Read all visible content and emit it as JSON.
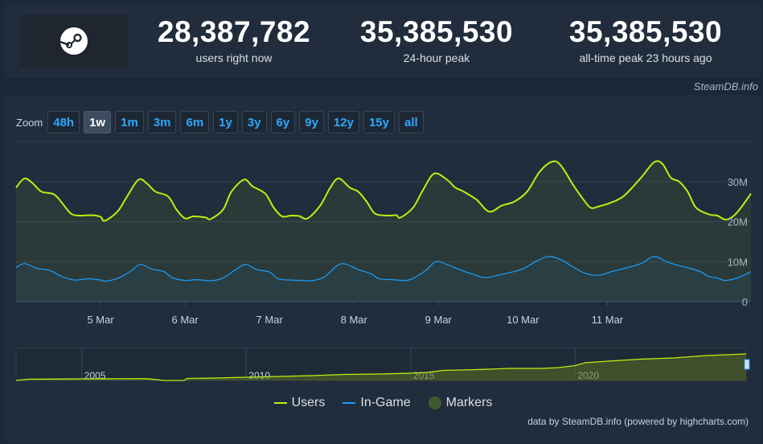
{
  "stats": [
    {
      "value": "28,387,782",
      "label": "users right now"
    },
    {
      "value": "35,385,530",
      "label": "24-hour peak"
    },
    {
      "value": "35,385,530",
      "label": "all-time peak 23 hours ago"
    }
  ],
  "logo_icon": "steam-logo-icon",
  "credit_top": "SteamDB.info",
  "zoom": {
    "label": "Zoom",
    "buttons": [
      "48h",
      "1w",
      "1m",
      "3m",
      "6m",
      "1y",
      "3y",
      "6y",
      "9y",
      "12y",
      "15y",
      "all"
    ],
    "active": "1w"
  },
  "chart_data": {
    "type": "line",
    "x_ticks": [
      "5 Mar",
      "6 Mar",
      "7 Mar",
      "8 Mar",
      "9 Mar",
      "10 Mar",
      "11 Mar"
    ],
    "y_ticks": [
      "30M",
      "20M",
      "10M",
      "0"
    ],
    "ylim": [
      0,
      40000000
    ],
    "grid": true,
    "x_unit": "days from 4 Mar 00:00 (UTC)",
    "series": [
      {
        "name": "Users",
        "color": "#beee11",
        "points": [
          [
            0.0,
            28.5
          ],
          [
            0.1,
            30.8
          ],
          [
            0.2,
            29.5
          ],
          [
            0.3,
            27.5
          ],
          [
            0.45,
            26.8
          ],
          [
            0.55,
            24.5
          ],
          [
            0.65,
            22.0
          ],
          [
            0.75,
            21.5
          ],
          [
            0.9,
            21.6
          ],
          [
            1.0,
            21.2
          ],
          [
            1.05,
            20.2
          ],
          [
            1.2,
            22.5
          ],
          [
            1.32,
            26.5
          ],
          [
            1.45,
            30.5
          ],
          [
            1.55,
            29.5
          ],
          [
            1.65,
            27.5
          ],
          [
            1.8,
            26.3
          ],
          [
            1.9,
            23.0
          ],
          [
            2.0,
            20.8
          ],
          [
            2.1,
            21.3
          ],
          [
            2.25,
            21.0
          ],
          [
            2.3,
            20.6
          ],
          [
            2.45,
            23.0
          ],
          [
            2.55,
            27.5
          ],
          [
            2.7,
            30.5
          ],
          [
            2.8,
            28.8
          ],
          [
            2.95,
            27.0
          ],
          [
            3.05,
            23.5
          ],
          [
            3.15,
            21.3
          ],
          [
            3.25,
            21.5
          ],
          [
            3.35,
            21.4
          ],
          [
            3.45,
            20.8
          ],
          [
            3.6,
            24.0
          ],
          [
            3.72,
            28.5
          ],
          [
            3.82,
            30.8
          ],
          [
            3.95,
            28.5
          ],
          [
            4.05,
            27.5
          ],
          [
            4.15,
            25.0
          ],
          [
            4.25,
            22.0
          ],
          [
            4.4,
            21.5
          ],
          [
            4.5,
            21.6
          ],
          [
            4.55,
            21.0
          ],
          [
            4.7,
            23.5
          ],
          [
            4.82,
            28.0
          ],
          [
            4.95,
            32.0
          ],
          [
            5.1,
            30.5
          ],
          [
            5.2,
            28.5
          ],
          [
            5.3,
            27.5
          ],
          [
            5.45,
            25.5
          ],
          [
            5.6,
            22.5
          ],
          [
            5.75,
            24.0
          ],
          [
            5.9,
            25.0
          ],
          [
            6.05,
            27.5
          ],
          [
            6.2,
            32.5
          ],
          [
            6.35,
            35.0
          ],
          [
            6.45,
            34.0
          ],
          [
            6.6,
            29.0
          ],
          [
            6.7,
            26.0
          ],
          [
            6.8,
            23.5
          ],
          [
            6.9,
            23.8
          ],
          [
            7.05,
            24.8
          ],
          [
            7.2,
            26.5
          ],
          [
            7.4,
            31.0
          ],
          [
            7.55,
            34.8
          ],
          [
            7.65,
            34.5
          ],
          [
            7.75,
            31.0
          ],
          [
            7.85,
            30.0
          ],
          [
            7.95,
            27.5
          ],
          [
            8.05,
            23.5
          ],
          [
            8.2,
            21.8
          ],
          [
            8.3,
            21.5
          ],
          [
            8.4,
            20.5
          ],
          [
            8.5,
            21.5
          ],
          [
            8.6,
            24.0
          ],
          [
            8.7,
            27.0
          ]
        ]
      },
      {
        "name": "In-Game",
        "color": "#1a9fff",
        "points": [
          [
            0.0,
            8.5
          ],
          [
            0.1,
            9.5
          ],
          [
            0.25,
            8.3
          ],
          [
            0.4,
            7.8
          ],
          [
            0.55,
            6.2
          ],
          [
            0.7,
            5.4
          ],
          [
            0.85,
            5.7
          ],
          [
            1.0,
            5.4
          ],
          [
            1.05,
            5.1
          ],
          [
            1.2,
            5.8
          ],
          [
            1.35,
            7.5
          ],
          [
            1.47,
            9.3
          ],
          [
            1.6,
            8.2
          ],
          [
            1.75,
            7.5
          ],
          [
            1.85,
            6.0
          ],
          [
            2.0,
            5.3
          ],
          [
            2.15,
            5.5
          ],
          [
            2.3,
            5.2
          ],
          [
            2.45,
            5.9
          ],
          [
            2.6,
            8.0
          ],
          [
            2.72,
            9.3
          ],
          [
            2.85,
            8.0
          ],
          [
            3.0,
            7.4
          ],
          [
            3.1,
            5.7
          ],
          [
            3.25,
            5.4
          ],
          [
            3.4,
            5.3
          ],
          [
            3.5,
            5.2
          ],
          [
            3.65,
            6.2
          ],
          [
            3.8,
            9.0
          ],
          [
            3.9,
            9.4
          ],
          [
            4.05,
            8.0
          ],
          [
            4.2,
            7.0
          ],
          [
            4.3,
            5.7
          ],
          [
            4.45,
            5.5
          ],
          [
            4.6,
            5.3
          ],
          [
            4.7,
            5.8
          ],
          [
            4.85,
            7.8
          ],
          [
            4.97,
            10.0
          ],
          [
            5.1,
            9.3
          ],
          [
            5.25,
            8.0
          ],
          [
            5.4,
            6.9
          ],
          [
            5.55,
            6.0
          ],
          [
            5.7,
            6.6
          ],
          [
            5.85,
            7.3
          ],
          [
            6.0,
            8.2
          ],
          [
            6.15,
            10.0
          ],
          [
            6.3,
            11.3
          ],
          [
            6.45,
            10.5
          ],
          [
            6.6,
            8.6
          ],
          [
            6.75,
            7.0
          ],
          [
            6.9,
            6.6
          ],
          [
            7.05,
            7.5
          ],
          [
            7.2,
            8.3
          ],
          [
            7.4,
            9.5
          ],
          [
            7.55,
            11.3
          ],
          [
            7.7,
            10.0
          ],
          [
            7.85,
            9.0
          ],
          [
            7.95,
            8.5
          ],
          [
            8.1,
            7.5
          ],
          [
            8.2,
            6.3
          ],
          [
            8.3,
            5.9
          ],
          [
            8.4,
            5.3
          ],
          [
            8.55,
            6.0
          ],
          [
            8.7,
            7.5
          ]
        ]
      }
    ]
  },
  "navigator": {
    "year_labels": [
      "2005",
      "2010",
      "2015",
      "2020"
    ],
    "year_range": [
      2003.0,
      2025.2
    ],
    "color": "#beee11",
    "points": [
      [
        2003.0,
        0.0
      ],
      [
        2003.4,
        1.6
      ],
      [
        2004.5,
        1.8
      ],
      [
        2005.0,
        2.0
      ],
      [
        2006.0,
        2.1
      ],
      [
        2007.0,
        2.2
      ],
      [
        2007.5,
        0.0
      ],
      [
        2008.1,
        0.0
      ],
      [
        2008.2,
        2.5
      ],
      [
        2009.0,
        3.0
      ],
      [
        2010.0,
        4.0
      ],
      [
        2011.0,
        5.0
      ],
      [
        2012.0,
        6.0
      ],
      [
        2013.0,
        7.5
      ],
      [
        2014.0,
        8.0
      ],
      [
        2015.0,
        9.0
      ],
      [
        2015.5,
        10.0
      ],
      [
        2016.0,
        12.5
      ],
      [
        2017.0,
        13.5
      ],
      [
        2018.0,
        15.0
      ],
      [
        2019.0,
        15.0
      ],
      [
        2019.5,
        16.0
      ],
      [
        2020.0,
        18.5
      ],
      [
        2020.3,
        22.0
      ],
      [
        2021.0,
        24.0
      ],
      [
        2022.0,
        26.5
      ],
      [
        2023.0,
        28.0
      ],
      [
        2024.0,
        31.0
      ],
      [
        2025.2,
        33.0
      ]
    ]
  },
  "legend": [
    {
      "label": "Users",
      "color": "#beee11",
      "kind": "line"
    },
    {
      "label": "In-Game",
      "color": "#1a9fff",
      "kind": "line"
    },
    {
      "label": "Markers",
      "color": "#3e5a2e",
      "kind": "dot"
    }
  ],
  "credit_bottom": "data by SteamDB.info (powered by highcharts.com)"
}
